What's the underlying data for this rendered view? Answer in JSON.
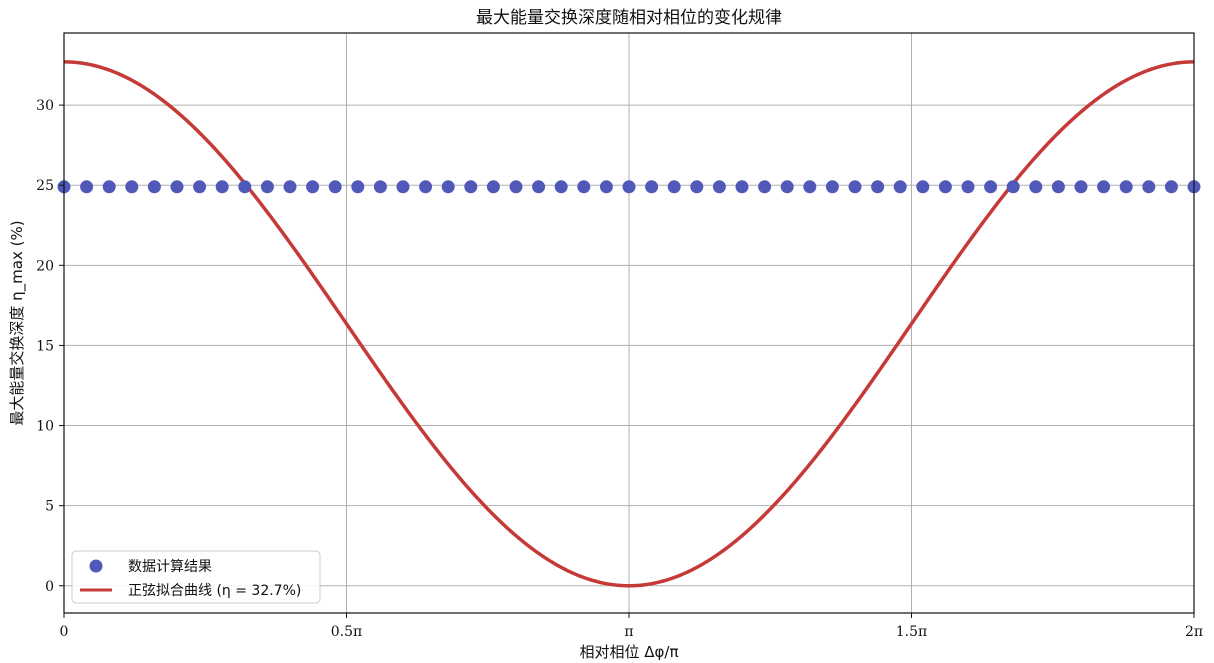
{
  "chart_data": {
    "type": "line",
    "title": "最大能量交换深度随相对相位的变化规律",
    "xlabel": "相对相位 Δφ/π",
    "ylabel": "最大能量交换深度 η_max (%)",
    "xlim": [
      0,
      2
    ],
    "ylim": [
      -1.7,
      34.5
    ],
    "x_ticks": [
      {
        "value": 0,
        "label": "0"
      },
      {
        "value": 0.5,
        "label": "0.5π"
      },
      {
        "value": 1,
        "label": "π"
      },
      {
        "value": 1.5,
        "label": "1.5π"
      },
      {
        "value": 2,
        "label": "2π"
      }
    ],
    "y_ticks": [
      0,
      5,
      10,
      15,
      20,
      25,
      30
    ],
    "grid": true,
    "legend": {
      "placement": "lower-left",
      "entries": [
        {
          "label": "数据计算结果",
          "marker": "circle",
          "color": "#5059b8"
        },
        {
          "label": "正弦拟合曲线 (η = 32.7%)",
          "marker": "line",
          "color": "#c53a37"
        }
      ]
    },
    "series": [
      {
        "name": "数据计算结果",
        "kind": "scatter",
        "color": "#5059b8",
        "x": [
          0,
          0.04,
          0.08,
          0.12,
          0.16,
          0.2,
          0.24,
          0.28,
          0.32,
          0.36,
          0.4,
          0.44,
          0.48,
          0.52,
          0.56,
          0.6,
          0.64,
          0.68,
          0.72,
          0.76,
          0.8,
          0.84,
          0.88,
          0.92,
          0.96,
          1.0,
          1.04,
          1.08,
          1.12,
          1.16,
          1.2,
          1.24,
          1.28,
          1.32,
          1.36,
          1.4,
          1.44,
          1.48,
          1.52,
          1.56,
          1.6,
          1.64,
          1.68,
          1.72,
          1.76,
          1.8,
          1.84,
          1.88,
          1.92,
          1.96,
          2.0
        ],
        "y": [
          24.9,
          24.9,
          24.9,
          24.9,
          24.9,
          24.9,
          24.9,
          24.9,
          24.9,
          24.9,
          24.9,
          24.9,
          24.9,
          24.9,
          24.9,
          24.9,
          24.9,
          24.9,
          24.9,
          24.9,
          24.9,
          24.9,
          24.9,
          24.9,
          24.9,
          24.9,
          24.9,
          24.9,
          24.9,
          24.9,
          24.9,
          24.9,
          24.9,
          24.9,
          24.9,
          24.9,
          24.9,
          24.9,
          24.9,
          24.9,
          24.9,
          24.9,
          24.9,
          24.9,
          24.9,
          24.9,
          24.9,
          24.9,
          24.9,
          24.9,
          24.9
        ]
      },
      {
        "name": "正弦拟合曲线 (η = 32.7%)",
        "kind": "line",
        "color": "#c53a37",
        "x": [
          0,
          0.05,
          0.1,
          0.15,
          0.2,
          0.25,
          0.3,
          0.35,
          0.4,
          0.45,
          0.5,
          0.55,
          0.6,
          0.65,
          0.7,
          0.75,
          0.8,
          0.85,
          0.9,
          0.95,
          1.0,
          1.05,
          1.1,
          1.15,
          1.2,
          1.25,
          1.3,
          1.35,
          1.4,
          1.45,
          1.5,
          1.55,
          1.6,
          1.65,
          1.7,
          1.75,
          1.8,
          1.85,
          1.9,
          1.95,
          2.0
        ],
        "y": [
          32.7,
          32.5,
          31.9,
          30.89,
          29.57,
          27.91,
          25.96,
          23.77,
          21.4,
          18.91,
          16.35,
          13.79,
          11.3,
          8.93,
          6.74,
          4.79,
          3.13,
          1.8,
          0.8,
          0.2,
          0.0,
          0.2,
          0.8,
          1.8,
          3.13,
          4.79,
          6.74,
          8.93,
          11.3,
          13.79,
          16.35,
          18.91,
          21.4,
          23.77,
          25.96,
          27.91,
          29.57,
          30.89,
          31.9,
          32.5,
          32.7
        ]
      }
    ]
  }
}
